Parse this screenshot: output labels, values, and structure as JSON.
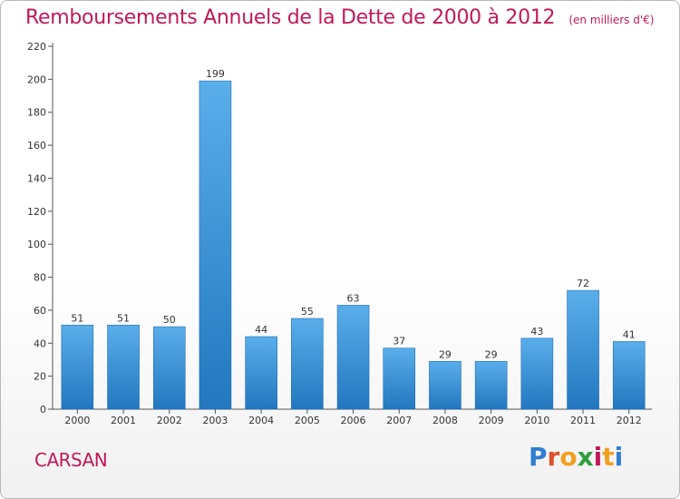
{
  "chart_data": {
    "type": "bar",
    "title": "Remboursements Annuels de la Dette de 2000 à 2012",
    "subtitle": "(en milliers d'€)",
    "categories": [
      "2000",
      "2001",
      "2002",
      "2003",
      "2004",
      "2005",
      "2006",
      "2007",
      "2008",
      "2009",
      "2010",
      "2011",
      "2012"
    ],
    "values": [
      51,
      51,
      50,
      199,
      44,
      55,
      63,
      37,
      29,
      29,
      43,
      72,
      41
    ],
    "ylim": [
      0,
      220
    ],
    "yticks": [
      0,
      20,
      40,
      60,
      80,
      100,
      120,
      140,
      160,
      180,
      200,
      220
    ],
    "grid": false,
    "bar_color": "#3a8fd8",
    "data_labels": true
  },
  "commune": "CARSAN",
  "logo": {
    "text": "Proxiti",
    "letter_colors": [
      "#2f7fd1",
      "#e0522a",
      "#f0a020",
      "#2f9e3d",
      "#c2185b",
      "#f0a020",
      "#2f7fd1"
    ]
  }
}
